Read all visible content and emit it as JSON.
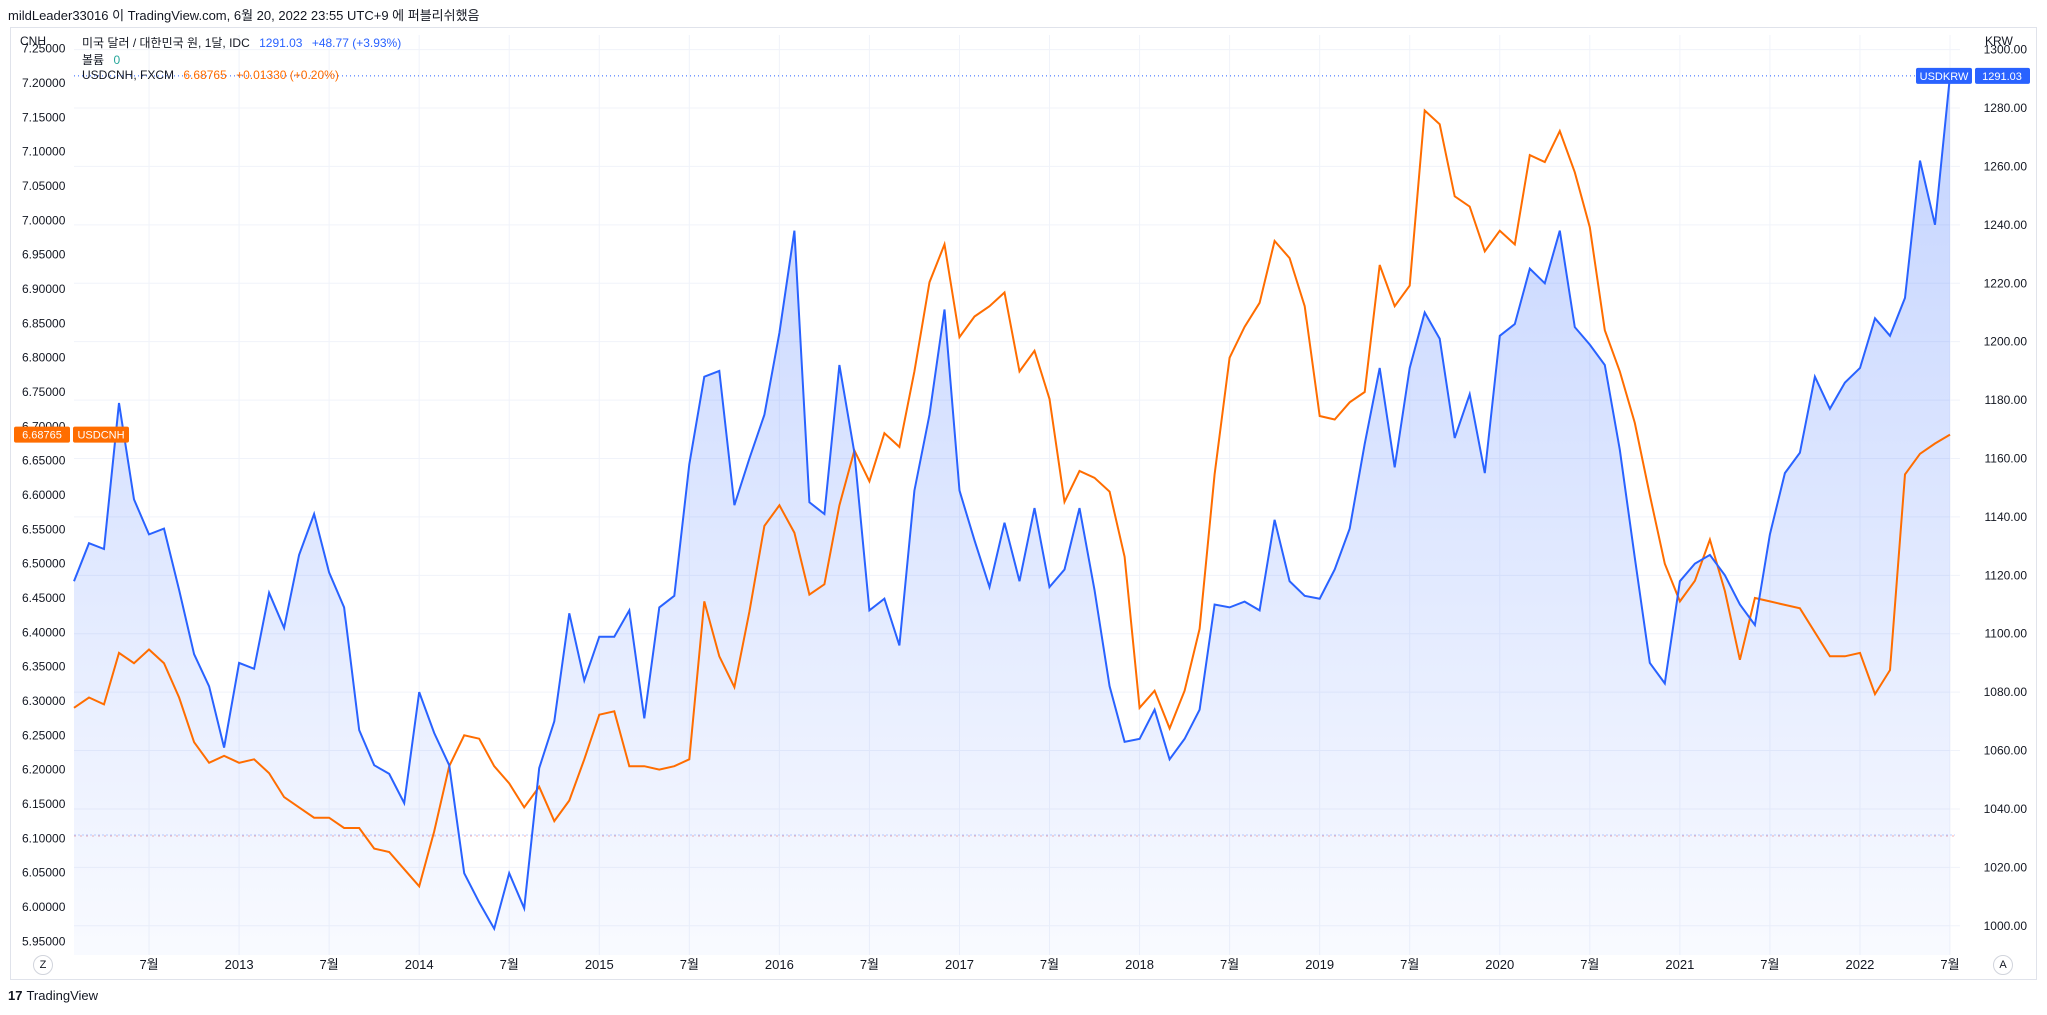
{
  "header": {
    "text": "mildLeader33016 이 TradingView.com, 6월 20, 2022 23:55 UTC+9 에 퍼블리쉬했음"
  },
  "legend": {
    "main": {
      "title": "미국 달러 / 대한민국 원, 1달, IDC",
      "price": "1291.03",
      "change": "+48.77 (+3.93%)"
    },
    "volume": {
      "label": "볼륨",
      "value": "0"
    },
    "overlay": {
      "title": "USDCNH, FXCM",
      "price": "6.68765",
      "change": "+0.01330 (+0.20%)"
    }
  },
  "axes": {
    "left_unit": "CNH",
    "right_unit": "KRW",
    "left_ticks": [
      "7.25000",
      "7.20000",
      "7.15000",
      "7.10000",
      "7.05000",
      "7.00000",
      "6.95000",
      "6.90000",
      "6.85000",
      "6.80000",
      "6.75000",
      "6.70000",
      "6.65000",
      "6.60000",
      "6.55000",
      "6.50000",
      "6.45000",
      "6.40000",
      "6.35000",
      "6.30000",
      "6.25000",
      "6.20000",
      "6.15000",
      "6.10000",
      "6.05000",
      "6.00000",
      "5.95000"
    ],
    "right_ticks": [
      "1300.00",
      "1280.00",
      "1260.00",
      "1240.00",
      "1220.00",
      "1200.00",
      "1180.00",
      "1160.00",
      "1140.00",
      "1120.00",
      "1100.00",
      "1080.00",
      "1060.00",
      "1040.00",
      "1020.00",
      "1000.00"
    ],
    "time_labels": [
      "7월",
      "2013",
      "7월",
      "2014",
      "7월",
      "2015",
      "7월",
      "2016",
      "7월",
      "2017",
      "7월",
      "2018",
      "7월",
      "2019",
      "7월",
      "2020",
      "7월",
      "2021",
      "7월",
      "2022",
      "7월"
    ]
  },
  "badges": {
    "krw_name": "USDKRW",
    "krw_value": "1291.03",
    "cnh_name": "USDCNH",
    "cnh_value": "6.68765"
  },
  "buttons": {
    "zoom_left": "Z",
    "auto": "A"
  },
  "footer": {
    "brand": "TradingView",
    "logo": "17"
  },
  "colors": {
    "krw": "#2962ff",
    "cnh": "#ff6d00",
    "grid": "#f0f3fa"
  },
  "chart_data": {
    "type": "area",
    "x_start": "2012-02",
    "interval": "1 month",
    "x_end": "2022-06",
    "right_ylim": [
      990,
      1305
    ],
    "left_ylim": [
      5.93,
      7.27
    ],
    "series": [
      {
        "name": "USDKRW",
        "axis": "right",
        "type": "area",
        "values": [
          1118,
          1131,
          1129,
          1179,
          1146,
          1134,
          1136,
          1115,
          1093,
          1082,
          1061,
          1090,
          1088,
          1114,
          1102,
          1127,
          1141,
          1121,
          1109,
          1067,
          1055,
          1052,
          1042,
          1080,
          1066,
          1055,
          1018,
          1008,
          999,
          1018,
          1006,
          1054,
          1070,
          1107,
          1084,
          1099,
          1099,
          1108,
          1071,
          1109,
          1113,
          1158,
          1188,
          1190,
          1144,
          1160,
          1175,
          1203,
          1238,
          1145,
          1141,
          1192,
          1162,
          1108,
          1112,
          1096,
          1149,
          1175,
          1211,
          1149,
          1132,
          1116,
          1138,
          1118,
          1143,
          1116,
          1122,
          1143,
          1115,
          1082,
          1063,
          1064,
          1074,
          1057,
          1064,
          1074,
          1110,
          1109,
          1111,
          1108,
          1139,
          1118,
          1113,
          1112,
          1122,
          1136,
          1165,
          1191,
          1157,
          1191,
          1210,
          1201,
          1167,
          1182,
          1155,
          1202,
          1206,
          1225,
          1220,
          1238,
          1205,
          1199,
          1192,
          1163,
          1126,
          1090,
          1083,
          1118,
          1124,
          1127,
          1120,
          1110,
          1103,
          1134,
          1155,
          1162,
          1188,
          1177,
          1186,
          1191,
          1208,
          1202,
          1215,
          1262,
          1240,
          1291
        ]
      },
      {
        "name": "USDCNH",
        "axis": "left",
        "type": "line",
        "values": [
          6.29,
          6.305,
          6.295,
          6.37,
          6.355,
          6.375,
          6.355,
          6.305,
          6.24,
          6.21,
          6.22,
          6.21,
          6.215,
          6.195,
          6.16,
          6.145,
          6.13,
          6.13,
          6.115,
          6.115,
          6.085,
          6.08,
          6.055,
          6.03,
          6.11,
          6.205,
          6.25,
          6.245,
          6.205,
          6.18,
          6.145,
          6.175,
          6.125,
          6.155,
          6.215,
          6.28,
          6.285,
          6.205,
          6.205,
          6.2,
          6.205,
          6.215,
          6.445,
          6.365,
          6.32,
          6.43,
          6.555,
          6.585,
          6.545,
          6.455,
          6.47,
          6.585,
          6.665,
          6.62,
          6.69,
          6.67,
          6.78,
          6.91,
          6.965,
          6.83,
          6.86,
          6.875,
          6.895,
          6.78,
          6.81,
          6.74,
          6.59,
          6.635,
          6.625,
          6.605,
          6.51,
          6.29,
          6.315,
          6.26,
          6.315,
          6.405,
          6.63,
          6.8,
          6.845,
          6.88,
          6.97,
          6.945,
          6.875,
          6.715,
          6.71,
          6.735,
          6.75,
          6.935,
          6.875,
          6.905,
          7.16,
          7.14,
          7.035,
          7.02,
          6.955,
          6.985,
          6.965,
          7.095,
          7.085,
          7.13,
          7.07,
          6.99,
          6.84,
          6.78,
          6.705,
          6.6,
          6.5,
          6.445,
          6.475,
          6.535,
          6.46,
          6.36,
          6.45,
          6.445,
          6.44,
          6.435,
          6.4,
          6.365,
          6.365,
          6.37,
          6.31,
          6.345,
          6.63,
          6.66,
          6.675,
          6.688
        ]
      }
    ]
  }
}
